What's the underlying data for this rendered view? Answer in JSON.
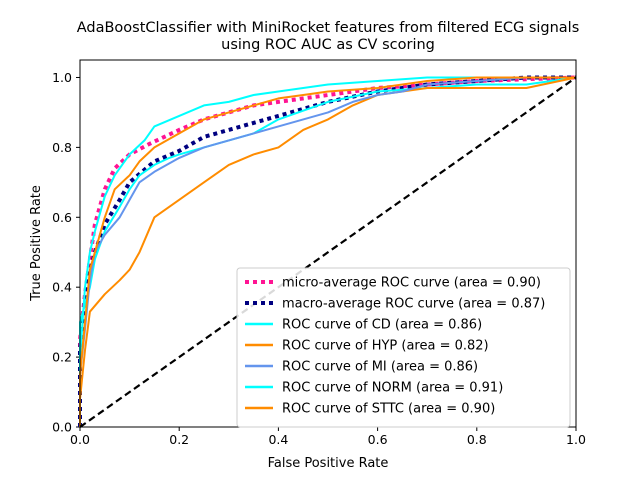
{
  "chart_data": {
    "type": "line",
    "title_line1": "AdaBoostClassifier with MiniRocket features from filtered ECG signals",
    "title_line2": "using ROC AUC as CV scoring",
    "xlabel": "False Positive Rate",
    "ylabel": "True Positive Rate",
    "xlim": [
      0.0,
      1.0
    ],
    "ylim": [
      0.0,
      1.05
    ],
    "x_ticks": [
      "0.0",
      "0.2",
      "0.4",
      "0.6",
      "0.8",
      "1.0"
    ],
    "y_ticks": [
      "0.0",
      "0.2",
      "0.4",
      "0.6",
      "0.8",
      "1.0"
    ],
    "grid": false,
    "legend_position": "lower-right",
    "chance_line": {
      "x": [
        0,
        1
      ],
      "y": [
        0,
        1
      ],
      "color": "#000000",
      "style": "dashed"
    },
    "series": [
      {
        "name": "micro-average ROC curve (area = 0.90)",
        "color": "#ff1493",
        "style": "dotted",
        "width": 4,
        "x": [
          0.0,
          0.0,
          0.01,
          0.02,
          0.03,
          0.05,
          0.07,
          0.1,
          0.14,
          0.2,
          0.25,
          0.3,
          0.35,
          0.4,
          0.5,
          0.6,
          0.7,
          0.8,
          0.9,
          1.0
        ],
        "y": [
          0.0,
          0.25,
          0.38,
          0.48,
          0.58,
          0.68,
          0.74,
          0.78,
          0.81,
          0.85,
          0.88,
          0.9,
          0.92,
          0.93,
          0.95,
          0.97,
          0.98,
          0.99,
          0.995,
          1.0
        ]
      },
      {
        "name": "macro-average ROC curve (area = 0.87)",
        "color": "#000080",
        "style": "dotted",
        "width": 4,
        "x": [
          0.0,
          0.0,
          0.01,
          0.02,
          0.03,
          0.05,
          0.08,
          0.1,
          0.15,
          0.2,
          0.25,
          0.3,
          0.4,
          0.5,
          0.6,
          0.7,
          0.8,
          0.9,
          1.0
        ],
        "y": [
          0.0,
          0.22,
          0.36,
          0.44,
          0.5,
          0.58,
          0.65,
          0.7,
          0.76,
          0.79,
          0.83,
          0.85,
          0.89,
          0.93,
          0.96,
          0.98,
          0.99,
          1.0,
          1.0
        ]
      },
      {
        "name": "ROC curve of CD (area = 0.86)",
        "color": "#00ffff",
        "style": "solid",
        "width": 2,
        "x": [
          0.0,
          0.0,
          0.01,
          0.02,
          0.03,
          0.05,
          0.08,
          0.1,
          0.12,
          0.15,
          0.18,
          0.2,
          0.25,
          0.3,
          0.35,
          0.4,
          0.5,
          0.6,
          0.7,
          0.8,
          0.9,
          1.0
        ],
        "y": [
          0.0,
          0.3,
          0.35,
          0.4,
          0.48,
          0.56,
          0.63,
          0.68,
          0.72,
          0.75,
          0.77,
          0.78,
          0.8,
          0.82,
          0.84,
          0.88,
          0.93,
          0.96,
          0.97,
          0.98,
          0.98,
          1.0
        ]
      },
      {
        "name": "ROC curve of HYP (area = 0.82)",
        "color": "#ff8c00",
        "style": "solid",
        "width": 2,
        "x": [
          0.0,
          0.0,
          0.01,
          0.02,
          0.05,
          0.08,
          0.1,
          0.12,
          0.15,
          0.2,
          0.25,
          0.3,
          0.35,
          0.4,
          0.45,
          0.5,
          0.55,
          0.6,
          0.7,
          0.8,
          0.9,
          1.0
        ],
        "y": [
          0.0,
          0.08,
          0.22,
          0.33,
          0.38,
          0.42,
          0.45,
          0.5,
          0.6,
          0.65,
          0.7,
          0.75,
          0.78,
          0.8,
          0.85,
          0.88,
          0.92,
          0.95,
          0.97,
          0.97,
          0.97,
          1.0
        ]
      },
      {
        "name": "ROC curve of MI (area = 0.86)",
        "color": "#6495ed",
        "style": "solid",
        "width": 2,
        "x": [
          0.0,
          0.0,
          0.01,
          0.02,
          0.03,
          0.05,
          0.08,
          0.1,
          0.12,
          0.15,
          0.2,
          0.25,
          0.3,
          0.35,
          0.4,
          0.45,
          0.5,
          0.55,
          0.6,
          0.65,
          0.7,
          0.8,
          0.9,
          1.0
        ],
        "y": [
          0.0,
          0.15,
          0.28,
          0.42,
          0.5,
          0.55,
          0.6,
          0.65,
          0.7,
          0.73,
          0.77,
          0.8,
          0.82,
          0.84,
          0.86,
          0.88,
          0.9,
          0.93,
          0.95,
          0.96,
          0.98,
          0.99,
          1.0,
          1.0
        ]
      },
      {
        "name": "ROC curve of NORM (area = 0.91)",
        "color": "#00ffff",
        "style": "solid",
        "width": 2,
        "x": [
          0.0,
          0.0,
          0.01,
          0.02,
          0.03,
          0.05,
          0.07,
          0.1,
          0.13,
          0.15,
          0.2,
          0.25,
          0.3,
          0.35,
          0.4,
          0.5,
          0.6,
          0.7,
          0.8,
          0.9,
          1.0
        ],
        "y": [
          0.0,
          0.2,
          0.4,
          0.5,
          0.56,
          0.66,
          0.72,
          0.78,
          0.82,
          0.86,
          0.89,
          0.92,
          0.93,
          0.95,
          0.96,
          0.98,
          0.99,
          1.0,
          1.0,
          1.0,
          1.0
        ]
      },
      {
        "name": "ROC curve of STTC (area = 0.90)",
        "color": "#ff8c00",
        "style": "solid",
        "width": 2,
        "x": [
          0.0,
          0.0,
          0.01,
          0.02,
          0.03,
          0.05,
          0.07,
          0.1,
          0.12,
          0.15,
          0.2,
          0.25,
          0.3,
          0.35,
          0.4,
          0.45,
          0.5,
          0.6,
          0.7,
          0.8,
          0.9,
          1.0
        ],
        "y": [
          0.0,
          0.15,
          0.3,
          0.45,
          0.5,
          0.6,
          0.68,
          0.72,
          0.76,
          0.8,
          0.84,
          0.88,
          0.9,
          0.92,
          0.94,
          0.95,
          0.96,
          0.97,
          0.99,
          1.0,
          1.0,
          1.0
        ]
      }
    ]
  }
}
